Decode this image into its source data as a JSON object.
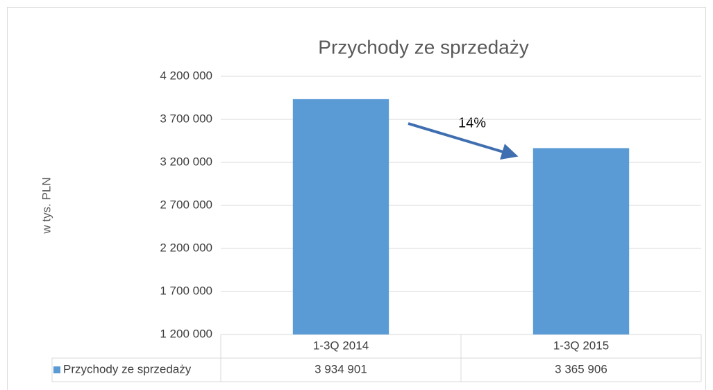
{
  "chart_data": {
    "type": "bar",
    "title": "Przychody ze sprzedaży",
    "y_label": "w tys. PLN",
    "categories": [
      "1-3Q 2014",
      "1-3Q 2015"
    ],
    "series": [
      {
        "name": "Przychody ze sprzedaży",
        "color": "#5b9bd5",
        "values": [
          3934901,
          3365906
        ],
        "value_labels": [
          "3 934 901",
          "3 365 906"
        ]
      }
    ],
    "ylim": [
      1200000,
      4200000
    ],
    "yticks": [
      {
        "value": 1200000,
        "label": "1 200 000"
      },
      {
        "value": 1700000,
        "label": "1 700 000"
      },
      {
        "value": 2200000,
        "label": "2 200 000"
      },
      {
        "value": 2700000,
        "label": "2 700 000"
      },
      {
        "value": 3200000,
        "label": "3 200 000"
      },
      {
        "value": 3700000,
        "label": "3 700 000"
      },
      {
        "value": 4200000,
        "label": "4 200 000"
      }
    ],
    "grid": true,
    "annotations": [
      {
        "text": "14%"
      }
    ]
  }
}
